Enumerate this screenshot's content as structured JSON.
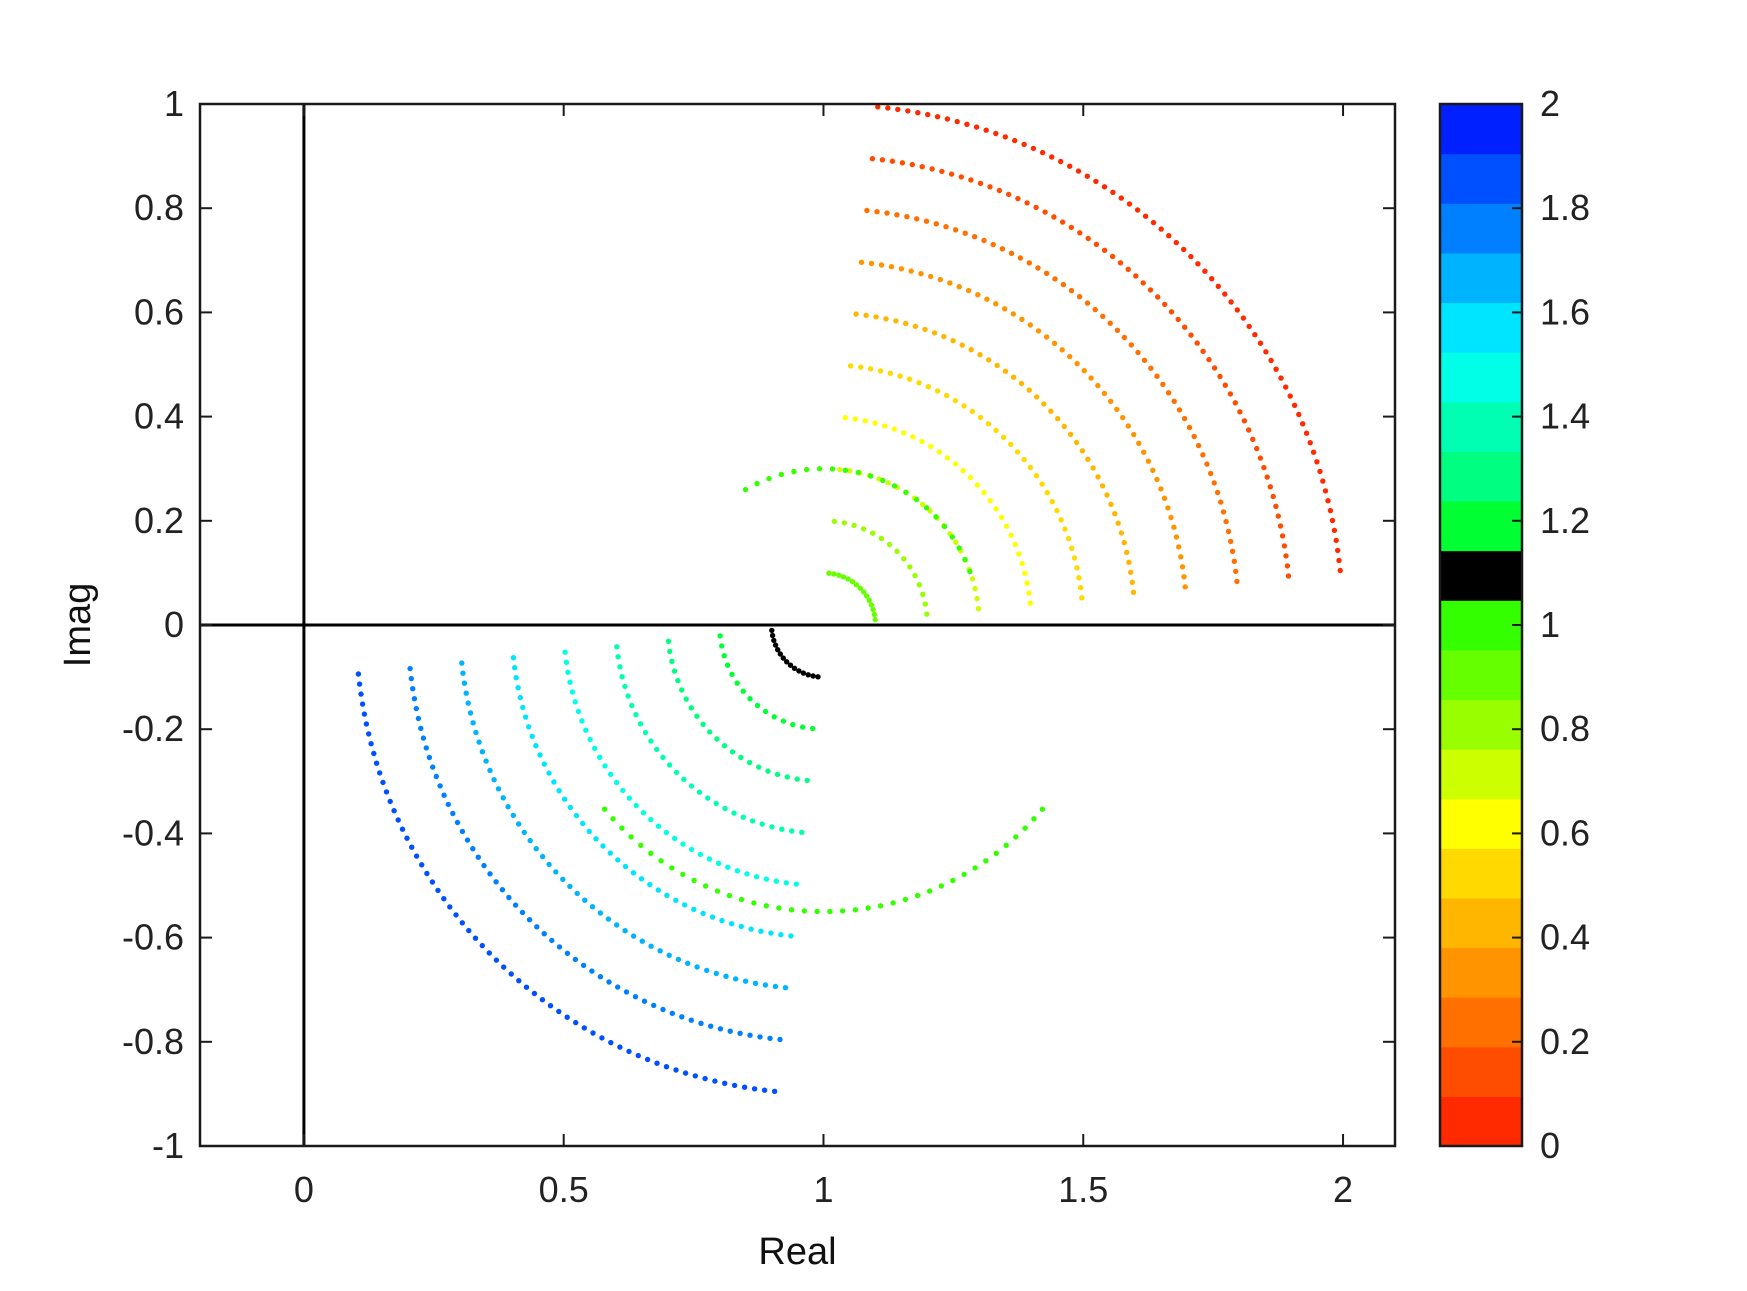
{
  "chart_data": {
    "type": "scatter",
    "xlabel": "Real",
    "ylabel": "Imag",
    "xlim": [
      -0.2,
      2.1
    ],
    "ylim": [
      -1,
      1
    ],
    "x_ticks": [
      0,
      0.5,
      1,
      1.5,
      2
    ],
    "x_tick_labels": [
      "0",
      "0.5",
      "1",
      "1.5",
      "2"
    ],
    "y_ticks": [
      1,
      0.8,
      0.6,
      0.4,
      0.2,
      0,
      -0.2,
      -0.4,
      -0.6,
      -0.8,
      -1
    ],
    "y_tick_labels": [
      "1",
      "0.8",
      "0.6",
      "0.4",
      "0.2",
      "0",
      "-0.2",
      "-0.4",
      "-0.6",
      "-0.8",
      "-1"
    ],
    "reference_lines": {
      "x": 0,
      "y": 0,
      "color": "#000000"
    },
    "grid": false,
    "box": true,
    "colorbar": {
      "location": "right",
      "range": [
        0,
        2
      ],
      "ticks": [
        0,
        0.2,
        0.4,
        0.6,
        0.8,
        1,
        1.2,
        1.4,
        1.6,
        1.8,
        2
      ],
      "tick_labels": [
        "0",
        "0.2",
        "0.4",
        "0.6",
        "0.8",
        "1",
        "1.2",
        "1.4",
        "1.6",
        "1.8",
        "2"
      ],
      "levels": 21,
      "colors": [
        "#ff2a00",
        "#ff4d00",
        "#ff7000",
        "#ff9300",
        "#ffb600",
        "#ffd900",
        "#ffff00",
        "#ccff00",
        "#99ff00",
        "#66ff00",
        "#33ff00",
        "#000000",
        "#00ff33",
        "#00ff80",
        "#00ffb3",
        "#00ffe6",
        "#00e5ff",
        "#00b3ff",
        "#0080ff",
        "#0050ff",
        "#0020ff"
      ]
    },
    "families": [
      {
        "center": [
          1,
          0
        ],
        "radius": 1.0,
        "start_deg": 84,
        "end_deg": 6,
        "color_value": 0.0
      },
      {
        "center": [
          1,
          0
        ],
        "radius": 0.9,
        "start_deg": 84,
        "end_deg": 6,
        "color_value": 0.1
      },
      {
        "center": [
          1,
          0
        ],
        "radius": 0.8,
        "start_deg": 84,
        "end_deg": 6,
        "color_value": 0.2
      },
      {
        "center": [
          1,
          0
        ],
        "radius": 0.7,
        "start_deg": 84,
        "end_deg": 6,
        "color_value": 0.3
      },
      {
        "center": [
          1,
          0
        ],
        "radius": 0.6,
        "start_deg": 84,
        "end_deg": 6,
        "color_value": 0.4
      },
      {
        "center": [
          1,
          0
        ],
        "radius": 0.5,
        "start_deg": 84,
        "end_deg": 6,
        "color_value": 0.5
      },
      {
        "center": [
          1,
          0
        ],
        "radius": 0.4,
        "start_deg": 84,
        "end_deg": 6,
        "color_value": 0.6
      },
      {
        "center": [
          1,
          0
        ],
        "radius": 0.3,
        "start_deg": 84,
        "end_deg": 6,
        "color_value": 0.7
      },
      {
        "center": [
          1,
          0
        ],
        "radius": 0.2,
        "start_deg": 84,
        "end_deg": 6,
        "color_value": 0.8
      },
      {
        "center": [
          1,
          0
        ],
        "radius": 0.1,
        "start_deg": 84,
        "end_deg": 6,
        "color_value": 0.9
      },
      {
        "center": [
          1,
          0
        ],
        "radius": 0.9,
        "start_deg": 186,
        "end_deg": 264,
        "color_value": 1.9
      },
      {
        "center": [
          1,
          0
        ],
        "radius": 0.8,
        "start_deg": 186,
        "end_deg": 264,
        "color_value": 1.8
      },
      {
        "center": [
          1,
          0
        ],
        "radius": 0.7,
        "start_deg": 186,
        "end_deg": 264,
        "color_value": 1.7
      },
      {
        "center": [
          1,
          0
        ],
        "radius": 0.6,
        "start_deg": 186,
        "end_deg": 264,
        "color_value": 1.6
      },
      {
        "center": [
          1,
          0
        ],
        "radius": 0.5,
        "start_deg": 186,
        "end_deg": 264,
        "color_value": 1.5
      },
      {
        "center": [
          1,
          0
        ],
        "radius": 0.4,
        "start_deg": 186,
        "end_deg": 264,
        "color_value": 1.4
      },
      {
        "center": [
          1,
          0
        ],
        "radius": 0.3,
        "start_deg": 186,
        "end_deg": 264,
        "color_value": 1.3
      },
      {
        "center": [
          1,
          0
        ],
        "radius": 0.2,
        "start_deg": 186,
        "end_deg": 264,
        "color_value": 1.2
      },
      {
        "center": [
          1,
          0
        ],
        "radius": 0.1,
        "start_deg": 186,
        "end_deg": 264,
        "color_value": 1.1
      },
      {
        "center": [
          1,
          0
        ],
        "radius": 0.55,
        "start_deg": 220,
        "end_deg": 320,
        "color_value": 1.0
      },
      {
        "center": [
          1,
          0
        ],
        "radius": 0.3,
        "start_deg": 20,
        "end_deg": 120,
        "color_value": 1.0
      }
    ]
  }
}
